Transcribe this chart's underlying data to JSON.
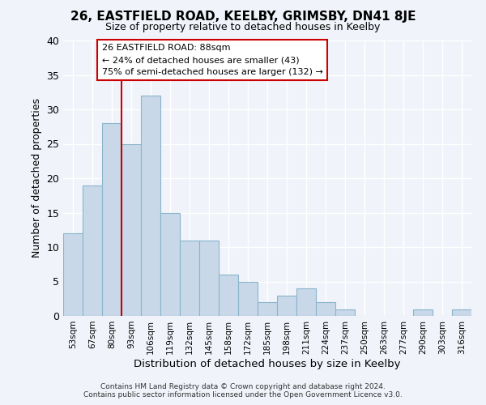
{
  "title": "26, EASTFIELD ROAD, KEELBY, GRIMSBY, DN41 8JE",
  "subtitle": "Size of property relative to detached houses in Keelby",
  "xlabel": "Distribution of detached houses by size in Keelby",
  "ylabel": "Number of detached properties",
  "bar_color": "#c8d8e8",
  "bar_edge_color": "#8ab4cc",
  "reference_line_x": 3,
  "reference_line_color": "#cc0000",
  "categories": [
    "53sqm",
    "67sqm",
    "80sqm",
    "93sqm",
    "106sqm",
    "119sqm",
    "132sqm",
    "145sqm",
    "158sqm",
    "172sqm",
    "185sqm",
    "198sqm",
    "211sqm",
    "224sqm",
    "237sqm",
    "250sqm",
    "263sqm",
    "277sqm",
    "290sqm",
    "303sqm",
    "316sqm"
  ],
  "values": [
    12,
    19,
    28,
    25,
    32,
    15,
    11,
    11,
    6,
    5,
    2,
    3,
    4,
    2,
    1,
    0,
    0,
    0,
    1,
    0,
    1
  ],
  "ylim": [
    0,
    40
  ],
  "annotation_title": "26 EASTFIELD ROAD: 88sqm",
  "annotation_line1": "← 24% of detached houses are smaller (43)",
  "annotation_line2": "75% of semi-detached houses are larger (132) →",
  "annotation_box_color": "#ffffff",
  "annotation_border_color": "#cc0000",
  "footer1": "Contains HM Land Registry data © Crown copyright and database right 2024.",
  "footer2": "Contains public sector information licensed under the Open Government Licence v3.0.",
  "background_color": "#f0f4fa",
  "grid_color": "#ffffff"
}
